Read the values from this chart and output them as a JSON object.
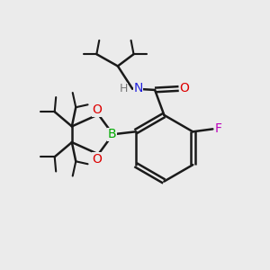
{
  "background_color": "#ebebeb",
  "bond_color": "#1a1a1a",
  "bond_width": 1.8,
  "atom_colors": {
    "C": "#1a1a1a",
    "H": "#777777",
    "N": "#2222dd",
    "O": "#dd0000",
    "F": "#bb00bb",
    "B": "#00aa00"
  },
  "figsize": [
    3.0,
    3.0
  ],
  "dpi": 100
}
